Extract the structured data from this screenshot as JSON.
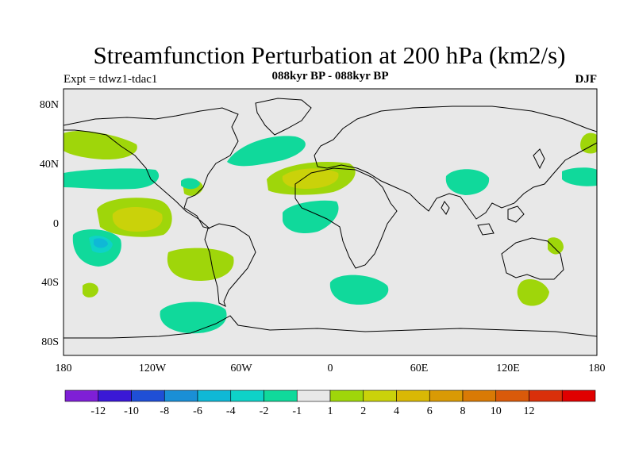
{
  "title": "Streamfunction Perturbation at 200 hPa (km2/s)",
  "subtitle_left": "Expt = tdwz1-tdac1",
  "subtitle_center": "088kyr BP - 088kyr BP",
  "subtitle_right": "DJF",
  "lat_ticks": [
    "80N",
    "40N",
    "0",
    "40S",
    "80S"
  ],
  "lon_ticks": [
    "180",
    "120W",
    "60W",
    "0",
    "60E",
    "120E",
    "180"
  ],
  "colorbar": {
    "colors": [
      "#7f1fd6",
      "#3a18d6",
      "#1f4fd6",
      "#1a8fd6",
      "#0fb8d6",
      "#0ed2c8",
      "#10d99b",
      "#e8e8e8",
      "#9fd60a",
      "#cad20a",
      "#d9b805",
      "#d99a05",
      "#d97a05",
      "#d95a0a",
      "#d9300a",
      "#e00000"
    ],
    "labels": [
      "-12",
      "-10",
      "-8",
      "-6",
      "-4",
      "-2",
      "-1",
      "1",
      "2",
      "4",
      "6",
      "8",
      "10",
      "12"
    ]
  },
  "palette": {
    "neutral": "#e8e8e8",
    "pos_light": "#9fd60a",
    "pos_mid": "#cad20a",
    "pos_strong": "#d9b805",
    "neg_light": "#10d99b",
    "neg_mid": "#0ed2c8",
    "neg_strong": "#0fb8d6"
  }
}
